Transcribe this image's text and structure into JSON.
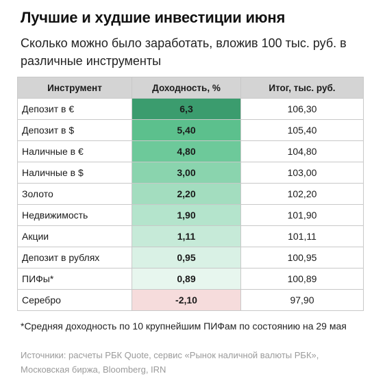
{
  "title": "Лучшие и худшие инвестиции июня",
  "subtitle": "Сколько можно было заработать, вложив 100 тыс. руб. в различные инструменты",
  "chart_data": {
    "type": "table",
    "columns": [
      "Инструмент",
      "Доходность, %",
      "Итог, тыс. руб."
    ],
    "rows": [
      {
        "instrument": "Депозит в €",
        "yield": "6,3",
        "yield_value": 6.3,
        "total": "106,30",
        "color": "#3b9c6e"
      },
      {
        "instrument": "Депозит в $",
        "yield": "5,40",
        "yield_value": 5.4,
        "total": "105,40",
        "color": "#5cc08d"
      },
      {
        "instrument": "Наличные в €",
        "yield": "4,80",
        "yield_value": 4.8,
        "total": "104,80",
        "color": "#6dc99a"
      },
      {
        "instrument": "Наличные в $",
        "yield": "3,00",
        "yield_value": 3.0,
        "total": "103,00",
        "color": "#8ad4ae"
      },
      {
        "instrument": "Золото",
        "yield": "2,20",
        "yield_value": 2.2,
        "total": "102,20",
        "color": "#a3ddbf"
      },
      {
        "instrument": "Недвижимость",
        "yield": "1,90",
        "yield_value": 1.9,
        "total": "101,90",
        "color": "#b4e4cc"
      },
      {
        "instrument": "Акции",
        "yield": "1,11",
        "yield_value": 1.11,
        "total": "101,11",
        "color": "#c6ead8"
      },
      {
        "instrument": "Депозит в рублях",
        "yield": "0,95",
        "yield_value": 0.95,
        "total": "100,95",
        "color": "#d9f1e5"
      },
      {
        "instrument": "ПИФы*",
        "yield": "0,89",
        "yield_value": 0.89,
        "total": "100,89",
        "color": "#e7f6ee"
      },
      {
        "instrument": "Серебро",
        "yield": "-2,10",
        "yield_value": -2.1,
        "total": "97,90",
        "color": "#f6dcdc"
      }
    ]
  },
  "footnote": "*Средняя доходность по 10 крупнейшим ПИФам по состоянию на 29 мая",
  "sources": "Источники: расчеты РБК Quote, сервис «Рынок наличной валюты РБК», Московская биржа, Bloomberg, IRN"
}
